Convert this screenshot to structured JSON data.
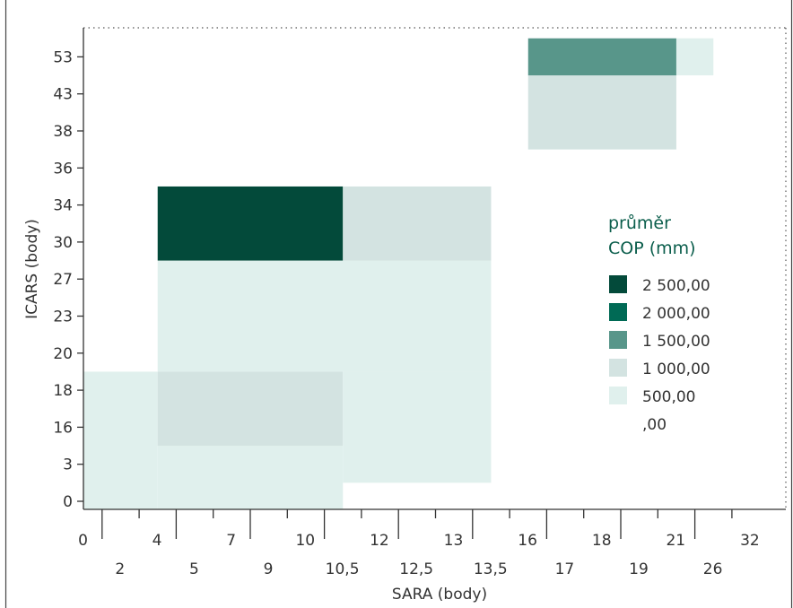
{
  "chart_data": {
    "type": "heatmap",
    "title": "",
    "xlabel": "SARA (body)",
    "ylabel": "ICARS (body)",
    "x_categories_row1": [
      "0",
      "4",
      "7",
      "10",
      "12",
      "13",
      "16",
      "18",
      "21",
      "32"
    ],
    "x_categories_row2": [
      "2",
      "5",
      "9",
      "10,5",
      "12,5",
      "13,5",
      "17",
      "19",
      "26"
    ],
    "x_categories": [
      "0",
      "2",
      "4",
      "5",
      "7",
      "9",
      "10",
      "10,5",
      "12",
      "12,5",
      "13",
      "13,5",
      "16",
      "17",
      "18",
      "19",
      "21",
      "26",
      "32"
    ],
    "y_categories": [
      "0",
      "3",
      "16",
      "18",
      "20",
      "23",
      "27",
      "30",
      "34",
      "36",
      "38",
      "43",
      "53"
    ],
    "legend": {
      "title_line1": "průměr",
      "title_line2": "COP (mm)",
      "placement": "right",
      "items": [
        {
          "label": "2 500,00",
          "color": "#034a3a"
        },
        {
          "label": "2 000,00",
          "color": "#006a55"
        },
        {
          "label": "1 500,00",
          "color": "#58968a"
        },
        {
          "label": "1 000,00",
          "color": "#d3e3e1"
        },
        {
          "label": "500,00",
          "color": "#e0f0ed"
        },
        {
          "label": ",00",
          "color": "#ffffff"
        }
      ]
    },
    "cells": [
      {
        "x_from": "0",
        "x_to": "4",
        "y_from": "0",
        "y_to": "18",
        "mean_cop": 500,
        "color": "#e0f0ed"
      },
      {
        "x_from": "5",
        "x_to": "10,5",
        "y_from": "0",
        "y_to": "3",
        "mean_cop": 500,
        "color": "#e0f0ed"
      },
      {
        "x_from": "5",
        "x_to": "10,5",
        "y_from": "16",
        "y_to": "18",
        "mean_cop": 1000,
        "color": "#d3e3e1"
      },
      {
        "x_from": "5",
        "x_to": "13,5",
        "y_from": "20",
        "y_to": "27",
        "mean_cop": 500,
        "color": "#e0f0ed"
      },
      {
        "x_from": "12",
        "x_to": "13,5",
        "y_from": "3",
        "y_to": "18",
        "mean_cop": 500,
        "color": "#e0f0ed"
      },
      {
        "x_from": "5",
        "x_to": "10,5",
        "y_from": "30",
        "y_to": "34",
        "mean_cop": 2500,
        "color": "#034a3a"
      },
      {
        "x_from": "12",
        "x_to": "13,5",
        "y_from": "30",
        "y_to": "34",
        "mean_cop": 1000,
        "color": "#d3e3e1"
      },
      {
        "x_from": "17",
        "x_to": "21",
        "y_from": "38",
        "y_to": "43",
        "mean_cop": 1000,
        "color": "#d3e3e1"
      },
      {
        "x_from": "17",
        "x_to": "21",
        "y_from": "53",
        "y_to": "53",
        "mean_cop": 1500,
        "color": "#58968a"
      },
      {
        "x_from": "26",
        "x_to": "26",
        "y_from": "53",
        "y_to": "53",
        "mean_cop": 500,
        "color": "#e0f0ed"
      }
    ],
    "grid": false
  }
}
